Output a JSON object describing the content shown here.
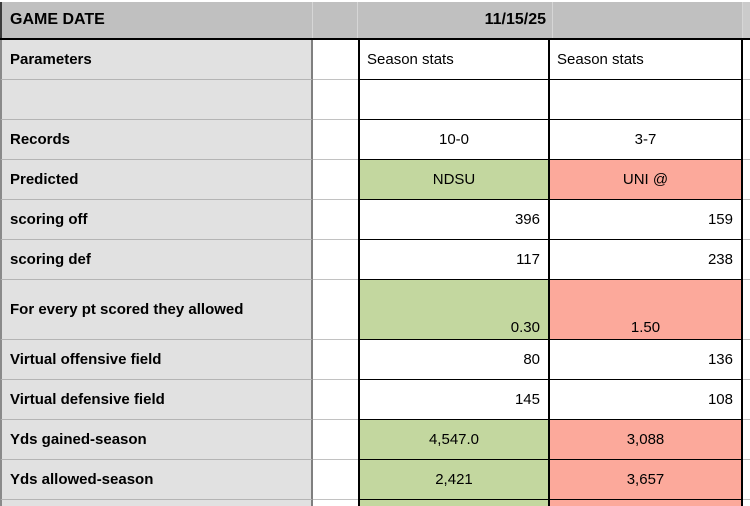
{
  "header": {
    "title": "GAME DATE",
    "date": "11/15/25"
  },
  "rows": [
    {
      "label": "Parameters",
      "v1": "Season stats",
      "v2": "Season stats"
    },
    {
      "label": "",
      "v1": "",
      "v2": ""
    },
    {
      "label": "Records",
      "v1": "10-0",
      "v2": "3-7"
    },
    {
      "label": "Predicted",
      "v1": "NDSU",
      "v2": "UNI @"
    },
    {
      "label": "scoring off",
      "v1": "396",
      "v2": "159"
    },
    {
      "label": "scoring def",
      "v1": "117",
      "v2": "238"
    },
    {
      "label": "For every pt scored they allowed",
      "v1": "0.30",
      "v2": "1.50"
    },
    {
      "label": "Virtual offensive field",
      "v1": "80",
      "v2": "136"
    },
    {
      "label": "Virtual defensive field",
      "v1": "145",
      "v2": "108"
    },
    {
      "label": "Yds gained-season",
      "v1": "4,547.0",
      "v2": "3,088"
    },
    {
      "label": "Yds allowed-season",
      "v1": "2,421",
      "v2": "3,657"
    }
  ],
  "colors": {
    "highlight_green": "#c3d79f",
    "highlight_red": "#fca99b",
    "header_gray": "#c0c0c0",
    "label_gray": "#e1e1e1"
  }
}
